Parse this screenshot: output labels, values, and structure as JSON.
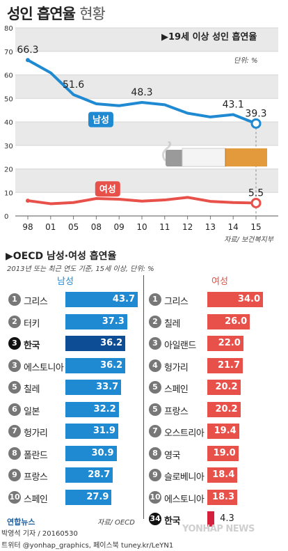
{
  "title": {
    "main": "성인 흡연율",
    "sub": "현황"
  },
  "chart_data": [
    {
      "type": "line",
      "title": "▶19세 이상 성인 흡연율",
      "unit": "단위: %",
      "source": "자료/ 보건복지부",
      "x": [
        "98",
        "01",
        "05",
        "08",
        "09",
        "10",
        "11",
        "12",
        "13",
        "14",
        "15"
      ],
      "ylim": [
        0,
        80
      ],
      "yticks": [
        0,
        10,
        20,
        30,
        40,
        50,
        60,
        70,
        80
      ],
      "grid": true,
      "series": [
        {
          "name": "남성",
          "color": "#1f89d1",
          "values": [
            66.3,
            60.9,
            51.6,
            47.7,
            46.9,
            48.3,
            47.3,
            43.7,
            42.1,
            43.1,
            39.3
          ],
          "labels": {
            "0": "66.3",
            "2": "51.6",
            "5": "48.3",
            "9": "43.1",
            "10": "39.3"
          }
        },
        {
          "name": "여성",
          "color": "#e8504a",
          "values": [
            6.5,
            5.2,
            5.7,
            7.4,
            7.1,
            6.3,
            6.8,
            7.9,
            6.2,
            5.7,
            5.5
          ],
          "labels": {
            "10": "5.5"
          }
        }
      ]
    },
    {
      "type": "bar",
      "title": "▶OECD 남성·여성 흡연율",
      "note": "2013년 또는 최근 연도 기준, 15세 이상, 단위: %",
      "source": "자료/ OECD",
      "series": [
        {
          "name": "남성",
          "items": [
            {
              "rank": "1",
              "country": "그리스",
              "value": 43.7
            },
            {
              "rank": "2",
              "country": "터키",
              "value": 37.3
            },
            {
              "rank": "3",
              "country": "한국",
              "value": 36.2,
              "highlight": true
            },
            {
              "rank": "3",
              "country": "에스토니아",
              "value": 36.2
            },
            {
              "rank": "5",
              "country": "칠레",
              "value": 33.7
            },
            {
              "rank": "6",
              "country": "일본",
              "value": 32.2
            },
            {
              "rank": "7",
              "country": "헝가리",
              "value": 31.9
            },
            {
              "rank": "8",
              "country": "폴란드",
              "value": 30.9
            },
            {
              "rank": "9",
              "country": "프랑스",
              "value": 28.7
            },
            {
              "rank": "10",
              "country": "스페인",
              "value": 27.9
            }
          ]
        },
        {
          "name": "여성",
          "items": [
            {
              "rank": "1",
              "country": "그리스",
              "value": 34.0
            },
            {
              "rank": "2",
              "country": "칠레",
              "value": 26.0
            },
            {
              "rank": "3",
              "country": "아일랜드",
              "value": 22.0
            },
            {
              "rank": "4",
              "country": "헝가리",
              "value": 21.7
            },
            {
              "rank": "5",
              "country": "스페인",
              "value": 20.2
            },
            {
              "rank": "5",
              "country": "프랑스",
              "value": 20.2
            },
            {
              "rank": "7",
              "country": "오스트리아",
              "value": 19.4
            },
            {
              "rank": "8",
              "country": "영국",
              "value": 19.0
            },
            {
              "rank": "9",
              "country": "슬로베니아",
              "value": 18.4
            },
            {
              "rank": "10",
              "country": "에스토니아",
              "value": 18.3
            },
            {
              "rank": "34",
              "country": "한국",
              "value": 4.3,
              "highlight": true
            }
          ]
        }
      ]
    }
  ],
  "footer": {
    "logo": "연합뉴스",
    "credit": "박영석 기자 / 20160530",
    "social": "트위터 @yonhap_graphics, 페이스북 tuney.kr/LeYN1",
    "watermark": "YONHAP NEWS"
  }
}
